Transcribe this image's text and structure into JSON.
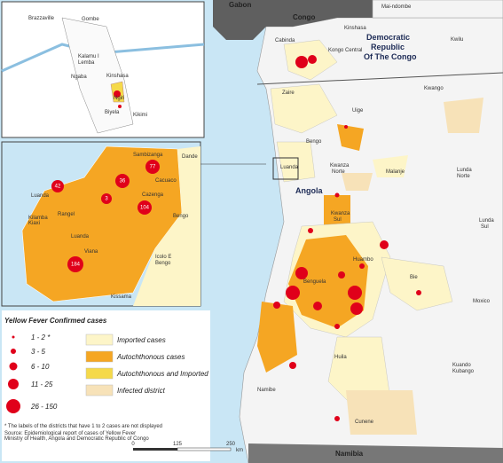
{
  "map": {
    "labels": [
      "Gabon",
      "Congo",
      "Cabinda",
      "Kongo Central",
      "Kinshasa",
      "Mai-ndombe",
      "Democratic",
      "Republic",
      "Of The Congo",
      "Kwilu",
      "Kwango",
      "Zaire",
      "Uige",
      "Bengo",
      "Luanda",
      "Kwanza",
      "Norte",
      "Malanje",
      "Lunda",
      "Norte",
      "Angola",
      "Kwanza",
      "Sul",
      "Lunda",
      "Sul",
      "Huambo",
      "Bie",
      "Benguela",
      "Moxico",
      "Huila",
      "Kuando",
      "Kubango",
      "Namibe",
      "Cunene",
      "Namibia"
    ],
    "inset_top_labels": [
      "Brazzaville",
      "Gombe",
      "Kalamu I",
      "Lemba",
      "Ngaba",
      "Kinshasa",
      "Ngiri",
      "Biyela",
      "Kikimi"
    ],
    "inset_bottom_labels": [
      "Sambizanga",
      "Dande",
      "Cacuaco",
      "Cazenga",
      "Luanda",
      "Rangel",
      "Kilamba",
      "Kiaxi",
      "Luanda",
      "Viana",
      "Bengo",
      "Icolo E",
      "Bengo",
      "Kissama"
    ],
    "inset_bottom_counts": [
      "77",
      "36",
      "42",
      "3",
      "104",
      "184"
    ],
    "legend": {
      "title": "Yellow Fever Confirmed cases",
      "sizes": [
        "1 - 2 *",
        "3 - 5",
        "6 - 10",
        "11 - 25",
        "26 - 150"
      ],
      "areas": [
        "Imported cases",
        "Autochthonous cases",
        "Autochthonous and Imported",
        "Infected district"
      ]
    },
    "note": "* The labels of the districts that have 1 to 2 cases are not displayed",
    "source": [
      "Source: Epidemiological report of cases of Yellow Fever",
      "Ministry of Health, Angola and Democratic Republic of Congo"
    ],
    "scale": [
      "0",
      "125",
      "250"
    ],
    "scale_unit": "km"
  }
}
